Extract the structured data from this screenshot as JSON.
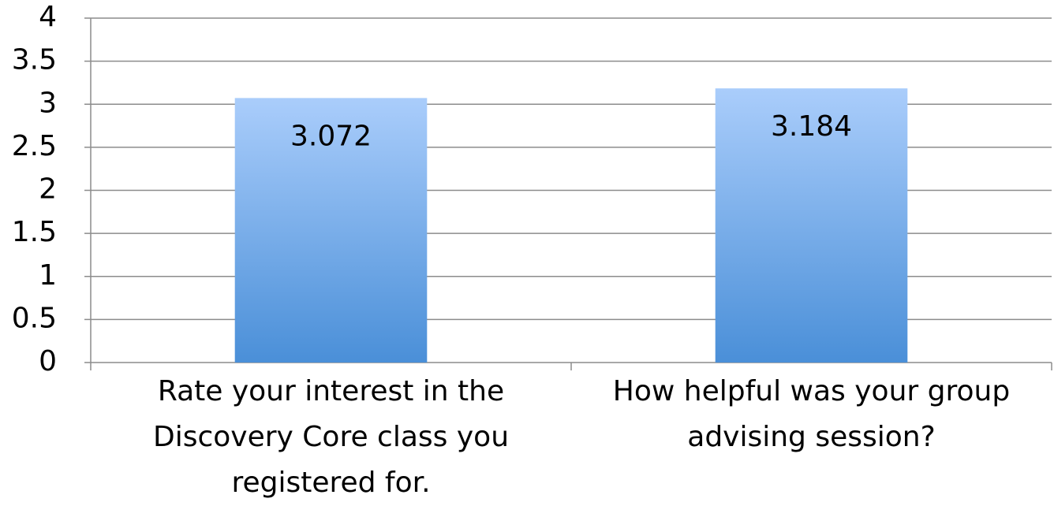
{
  "chart_data": {
    "type": "bar",
    "categories": [
      "Rate your interest in the Discovery Core class you registered for.",
      "How helpful was your group advising session?"
    ],
    "values": [
      3.072,
      3.184
    ],
    "color": [
      "#aacdfb",
      "#4a8fd8"
    ],
    "ylim": [
      0,
      4
    ],
    "yticks": [
      0,
      0.5,
      1,
      1.5,
      2,
      2.5,
      3,
      3.5,
      4
    ],
    "grid": true
  }
}
